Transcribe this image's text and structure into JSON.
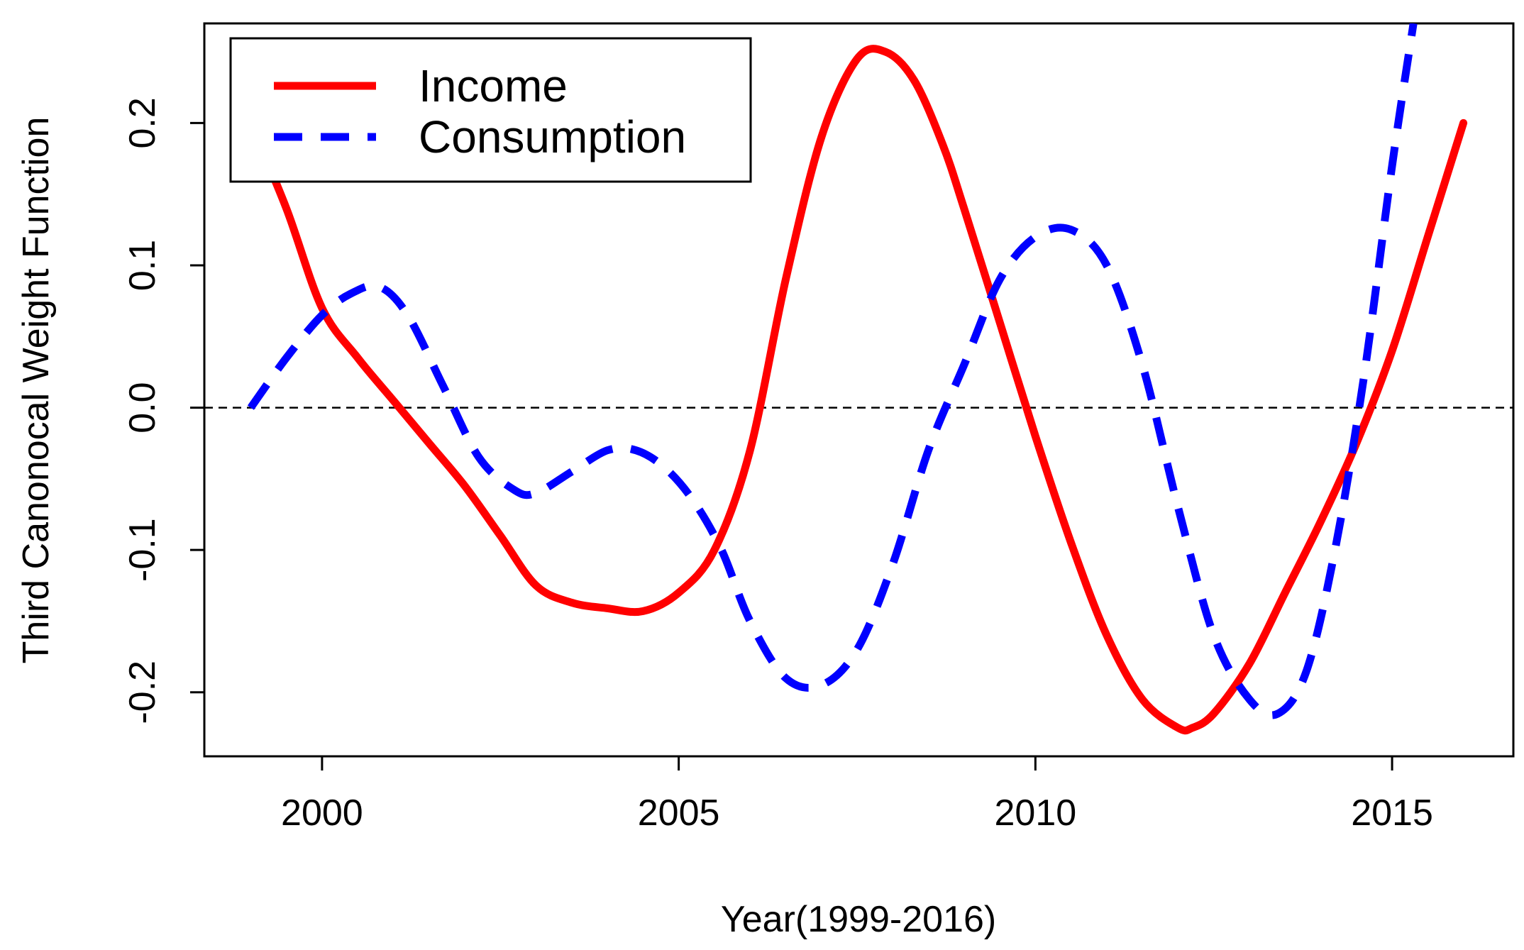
{
  "chart_data": {
    "type": "line",
    "title": "",
    "xlabel": "Year(1999-2016)",
    "ylabel": "Third Canonocal Weight Function",
    "xlim": [
      1998.35,
      2016.7
    ],
    "ylim": [
      -0.245,
      0.27
    ],
    "xticks": [
      {
        "value": 2000,
        "label": "2000"
      },
      {
        "value": 2005,
        "label": "2005"
      },
      {
        "value": 2010,
        "label": "2010"
      },
      {
        "value": 2015,
        "label": "2015"
      }
    ],
    "yticks": [
      {
        "value": -0.2,
        "label": "-0.2"
      },
      {
        "value": -0.1,
        "label": "-0.1"
      },
      {
        "value": 0.0,
        "label": "0.0"
      },
      {
        "value": 0.1,
        "label": "0.1"
      },
      {
        "value": 0.2,
        "label": "0.2"
      }
    ],
    "reference_line": {
      "y": 0,
      "style": "dashed",
      "color": "#000000"
    },
    "legend": {
      "position": "top-left",
      "entries": [
        "Income",
        "Consumption"
      ]
    },
    "series": [
      {
        "name": "Income",
        "color": "#ff0000",
        "linestyle": "solid",
        "x": [
          1999.0,
          1999.5,
          2000.0,
          2000.5,
          2001.0,
          2001.5,
          2002.0,
          2002.5,
          2003.0,
          2003.5,
          2004.0,
          2004.5,
          2005.0,
          2005.5,
          2006.0,
          2006.5,
          2007.0,
          2007.5,
          2007.9,
          2008.3,
          2008.7,
          2009.0,
          2009.5,
          2010.0,
          2010.5,
          2011.0,
          2011.5,
          2012.0,
          2012.2,
          2012.5,
          2013.0,
          2013.5,
          2014.0,
          2014.5,
          2015.0,
          2015.5,
          2016.0
        ],
        "y": [
          0.2,
          0.14,
          0.07,
          0.035,
          0.005,
          -0.025,
          -0.055,
          -0.09,
          -0.125,
          -0.137,
          -0.141,
          -0.143,
          -0.13,
          -0.1,
          -0.03,
          0.09,
          0.19,
          0.245,
          0.25,
          0.23,
          0.185,
          0.14,
          0.06,
          -0.02,
          -0.095,
          -0.16,
          -0.205,
          -0.225,
          -0.225,
          -0.215,
          -0.18,
          -0.13,
          -0.08,
          -0.025,
          0.04,
          0.12,
          0.2
        ]
      },
      {
        "name": "Consumption",
        "color": "#0000ff",
        "linestyle": "dashed",
        "x": [
          1999.0,
          1999.5,
          2000.0,
          2000.4,
          2000.8,
          2001.2,
          2001.7,
          2002.2,
          2002.7,
          2003.0,
          2003.5,
          2004.0,
          2004.4,
          2004.8,
          2005.2,
          2005.6,
          2006.0,
          2006.5,
          2007.0,
          2007.5,
          2008.0,
          2008.5,
          2009.0,
          2009.5,
          2010.0,
          2010.5,
          2011.0,
          2011.5,
          2012.0,
          2012.5,
          2013.0,
          2013.4,
          2013.8,
          2014.2,
          2014.6,
          2015.0,
          2015.3
        ],
        "y": [
          0.0,
          0.035,
          0.065,
          0.08,
          0.085,
          0.065,
          0.015,
          -0.035,
          -0.058,
          -0.06,
          -0.045,
          -0.03,
          -0.03,
          -0.042,
          -0.065,
          -0.1,
          -0.15,
          -0.19,
          -0.195,
          -0.17,
          -0.11,
          -0.03,
          0.03,
          0.09,
          0.12,
          0.125,
          0.1,
          0.03,
          -0.07,
          -0.16,
          -0.205,
          -0.215,
          -0.185,
          -0.1,
          0.02,
          0.17,
          0.27
        ]
      }
    ]
  }
}
